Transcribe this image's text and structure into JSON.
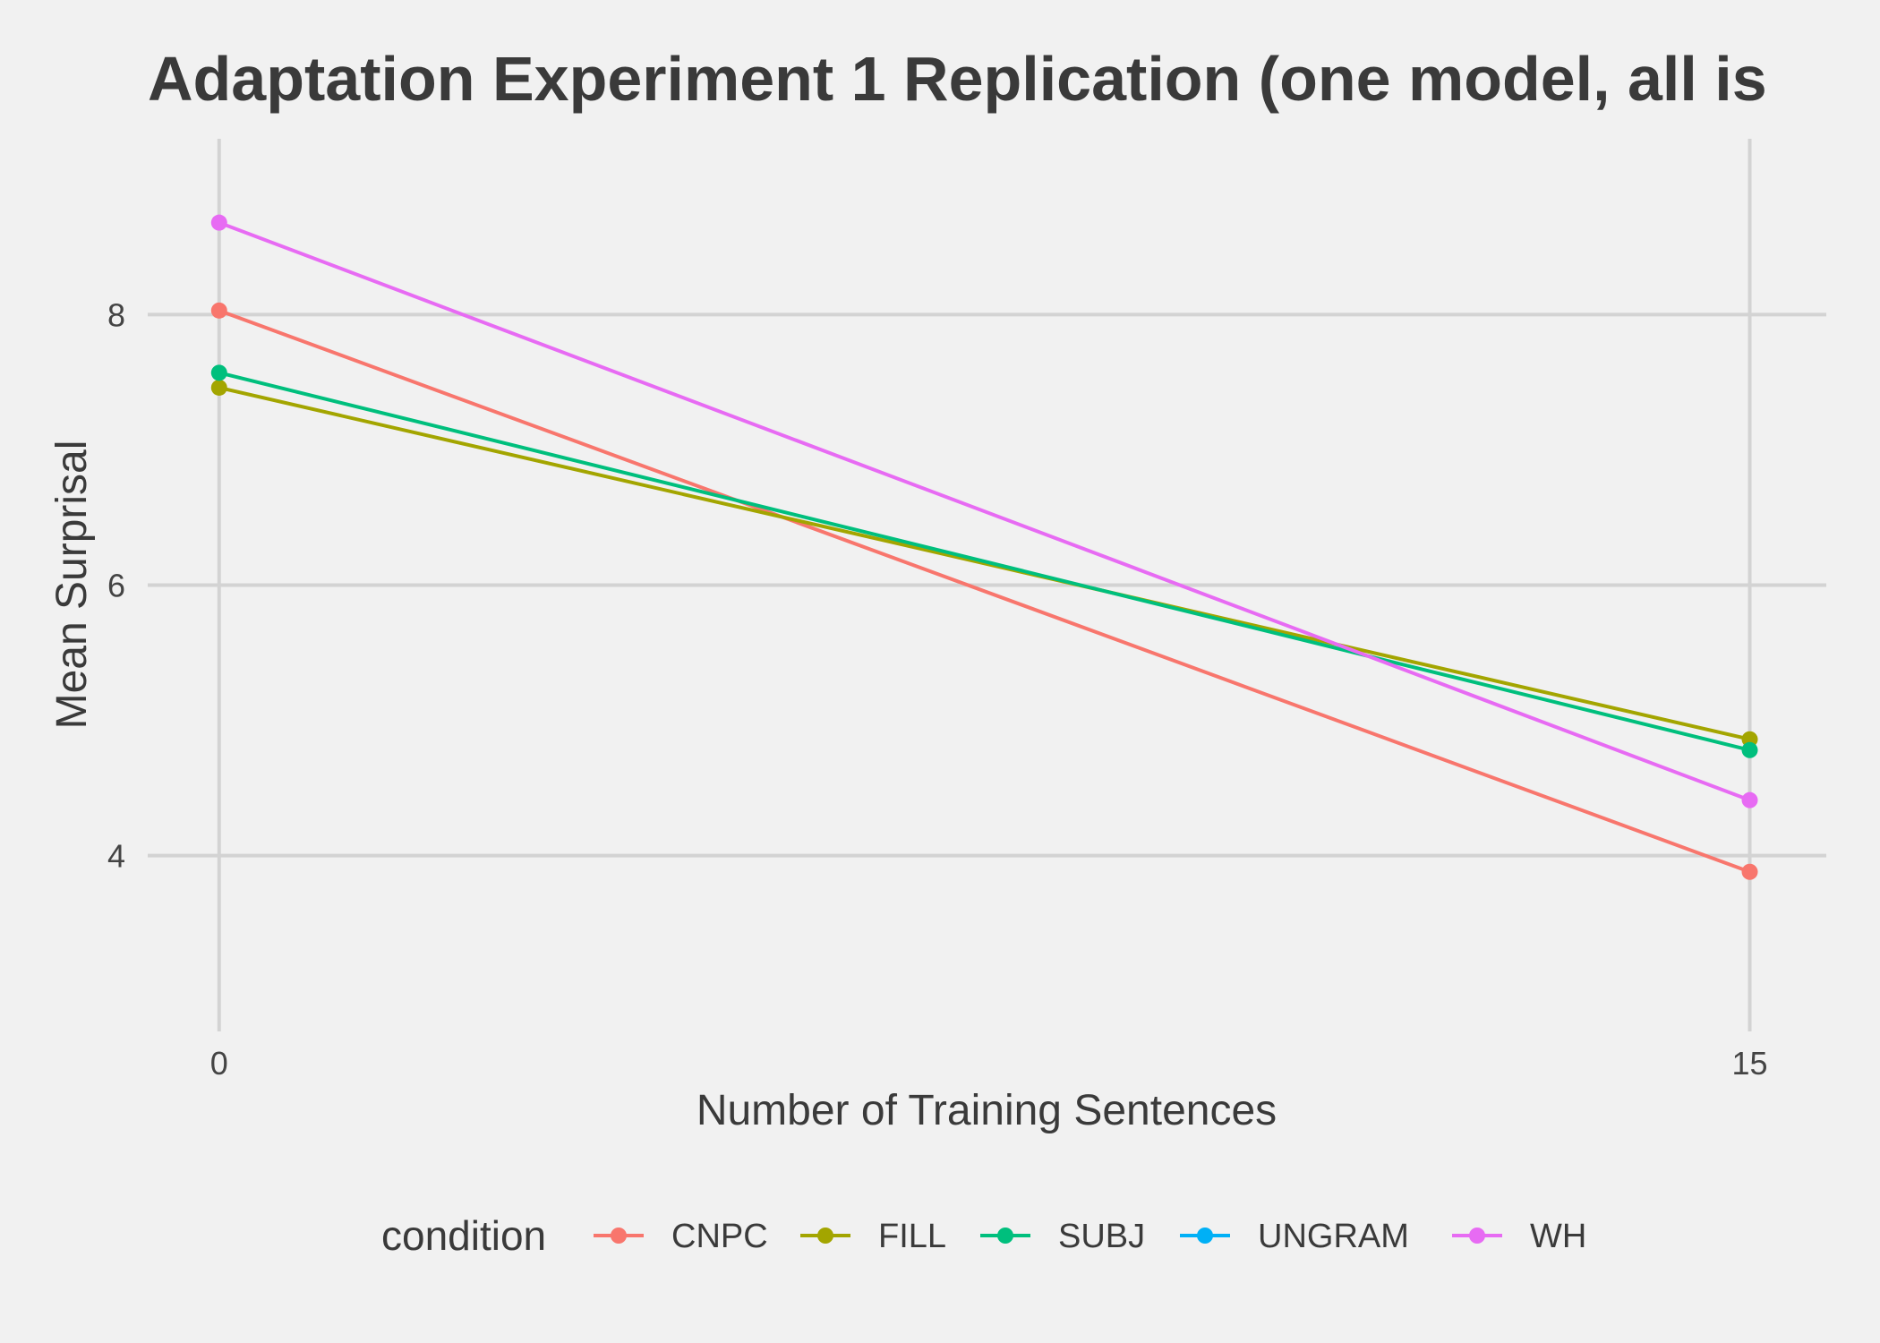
{
  "chart_data": {
    "type": "line",
    "title": "Adaptation Experiment 1 Replication (one model, all is",
    "xlabel": "Number of Training Sentences",
    "ylabel": "Mean Surprisal",
    "x": [
      0,
      15
    ],
    "x_ticks": [
      "0",
      "15"
    ],
    "y_ticks": [
      "4",
      "6",
      "8"
    ],
    "xlim": [
      -0.7,
      15.75
    ],
    "ylim": [
      2.7,
      9.3
    ],
    "grid": true,
    "legend": {
      "title": "condition",
      "position": "bottom"
    },
    "series": [
      {
        "name": "CNPC",
        "color": "#F8766D",
        "values": [
          8.03,
          3.88
        ]
      },
      {
        "name": "FILL",
        "color": "#A3A500",
        "values": [
          7.46,
          4.86
        ]
      },
      {
        "name": "SUBJ",
        "color": "#00BF7D",
        "values": [
          7.57,
          4.78
        ]
      },
      {
        "name": "UNGRAM",
        "color": "#00B0F6",
        "values": [
          null,
          null
        ]
      },
      {
        "name": "WH",
        "color": "#E76BF3",
        "values": [
          8.68,
          4.41
        ]
      }
    ]
  }
}
